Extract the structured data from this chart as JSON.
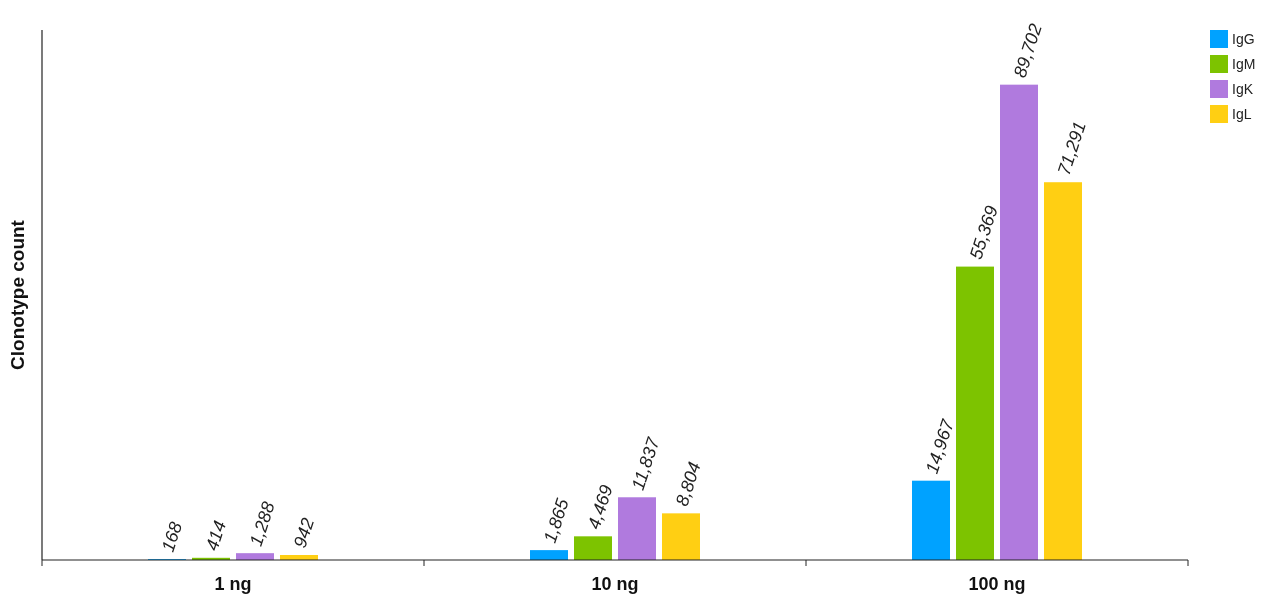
{
  "chart_data": {
    "type": "bar",
    "ylabel": "Clonotype count",
    "categories": [
      "1 ng",
      "10 ng",
      "100 ng"
    ],
    "series": [
      {
        "name": "IgG",
        "color": "#00a2ff",
        "values": [
          168,
          1865,
          14967
        ],
        "value_labels": [
          "168",
          "1,865",
          "14,967"
        ]
      },
      {
        "name": "IgM",
        "color": "#7dc300",
        "values": [
          414,
          4469,
          55369
        ],
        "value_labels": [
          "414",
          "4,469",
          "55,369"
        ]
      },
      {
        "name": "IgK",
        "color": "#b07ade",
        "values": [
          1288,
          11837,
          89702
        ],
        "value_labels": [
          "1,288",
          "11,837",
          "89,702"
        ]
      },
      {
        "name": "IgL",
        "color": "#ffcf13",
        "values": [
          942,
          8804,
          71291
        ],
        "value_labels": [
          "942",
          "8,804",
          "71,291"
        ]
      }
    ],
    "legend": "top right"
  }
}
